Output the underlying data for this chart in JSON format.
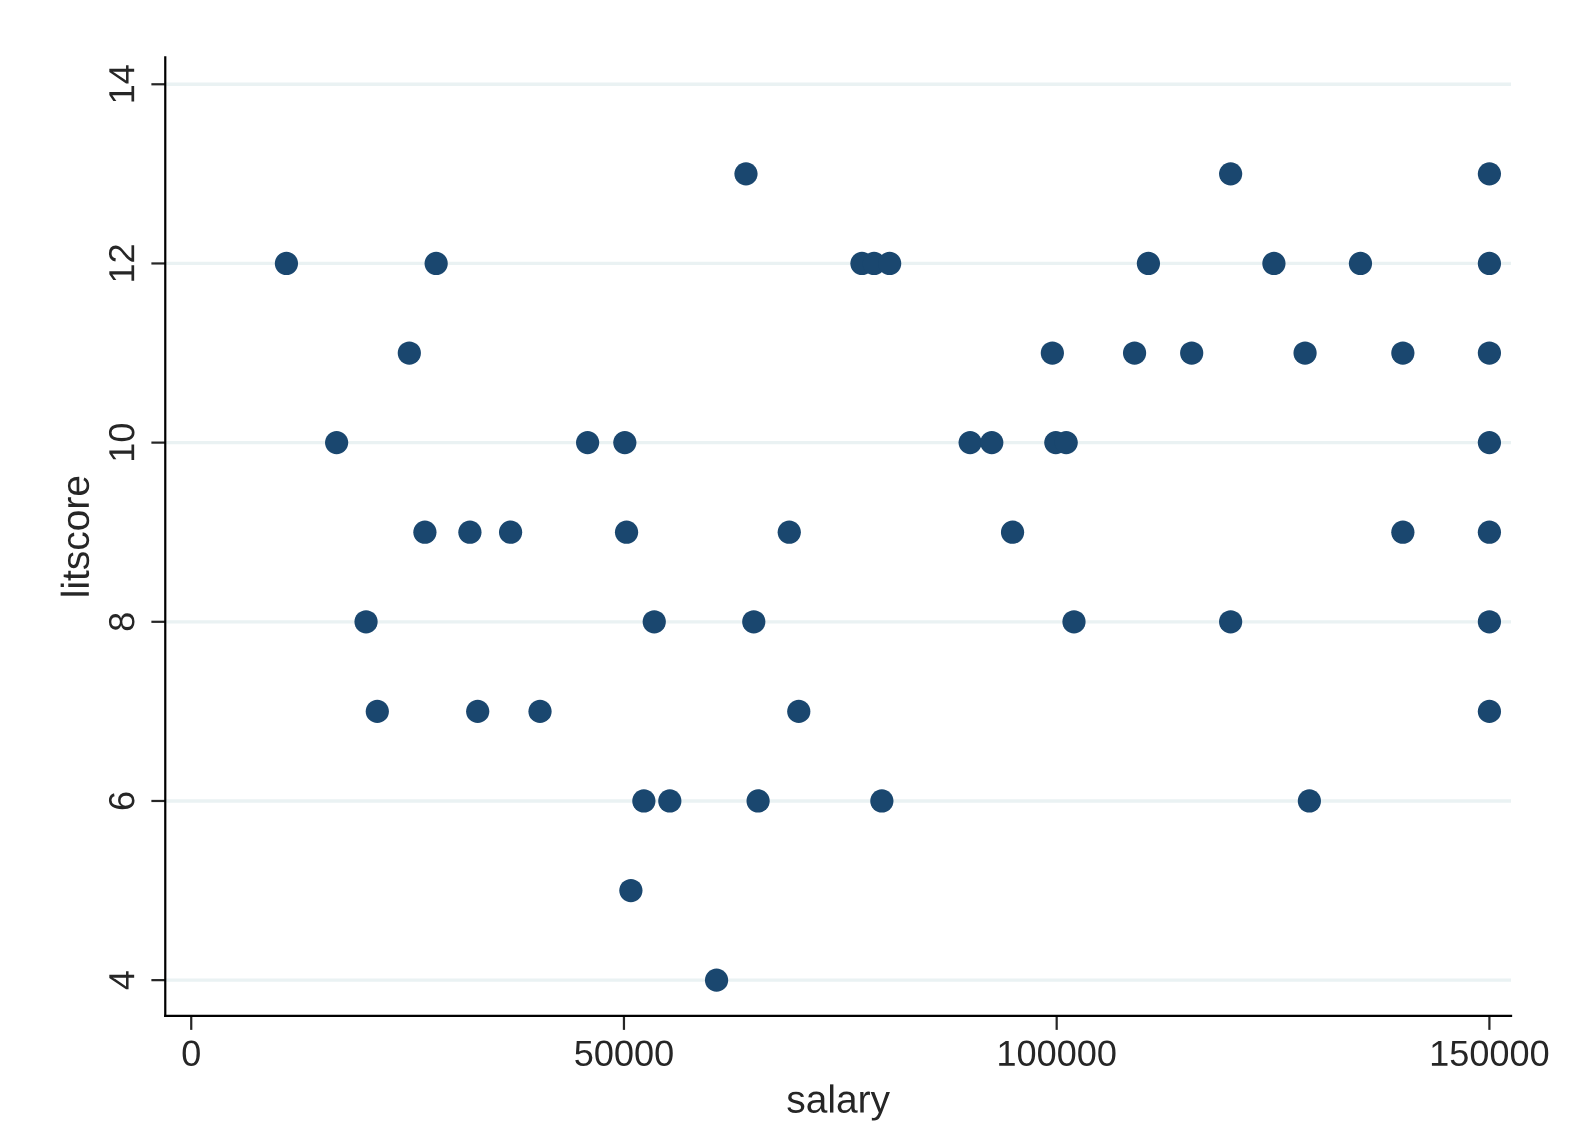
{
  "chart_data": {
    "type": "scatter",
    "xlabel": "salary",
    "ylabel": "litscore",
    "x": [
      11000,
      16800,
      20200,
      21500,
      25200,
      27000,
      28300,
      32200,
      33100,
      36900,
      40300,
      45800,
      50100,
      50300,
      50800,
      52300,
      53500,
      55300,
      60700,
      64100,
      65000,
      65500,
      69100,
      70200,
      77500,
      78900,
      79800,
      80700,
      90000,
      92500,
      94900,
      99500,
      99900,
      101100,
      102000,
      109000,
      110600,
      115600,
      120100,
      120100,
      125100,
      128700,
      129200,
      135100,
      140000,
      140000,
      150000,
      150000,
      150000,
      150000,
      150000,
      150000,
      150000
    ],
    "values": [
      12,
      10,
      8,
      7,
      11,
      9,
      12,
      9,
      7,
      9,
      7,
      10,
      10,
      9,
      5,
      6,
      8,
      6,
      4,
      13,
      8,
      6,
      9,
      7,
      12,
      12,
      6,
      12,
      10,
      10,
      9,
      11,
      10,
      10,
      8,
      11,
      12,
      11,
      13,
      8,
      12,
      11,
      6,
      12,
      11,
      9,
      13,
      12,
      11,
      10,
      9,
      8,
      7
    ],
    "color": "#1a476f",
    "marker": "circle",
    "xlim": [
      -3000,
      152500
    ],
    "ylim": [
      3.6,
      14.3
    ],
    "xticks": [
      0,
      50000,
      100000,
      150000
    ],
    "yticks": [
      4,
      6,
      8,
      10,
      12,
      14
    ],
    "grid": "y"
  }
}
